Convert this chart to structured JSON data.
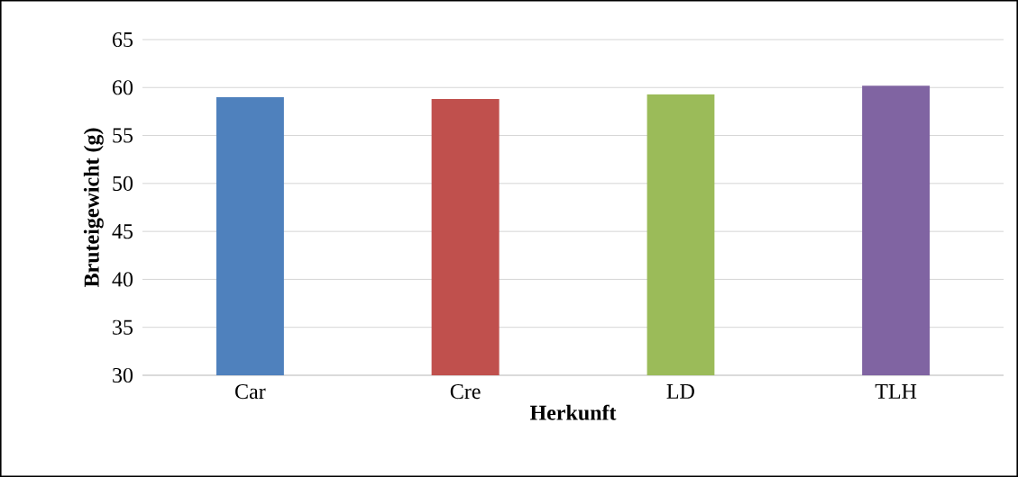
{
  "chart_data": {
    "type": "bar",
    "xlabel": "Herkunft",
    "ylabel": "Bruteigewicht (g)",
    "categories": [
      "Car",
      "Cre",
      "LD",
      "TLH"
    ],
    "values": [
      59.0,
      58.8,
      59.3,
      60.2
    ],
    "colors": [
      "#4f81bd",
      "#c0504d",
      "#9bbb59",
      "#8064a2"
    ],
    "ylim": [
      30,
      65
    ],
    "yticks": [
      30,
      35,
      40,
      45,
      50,
      55,
      60,
      65
    ],
    "grid": "y"
  }
}
